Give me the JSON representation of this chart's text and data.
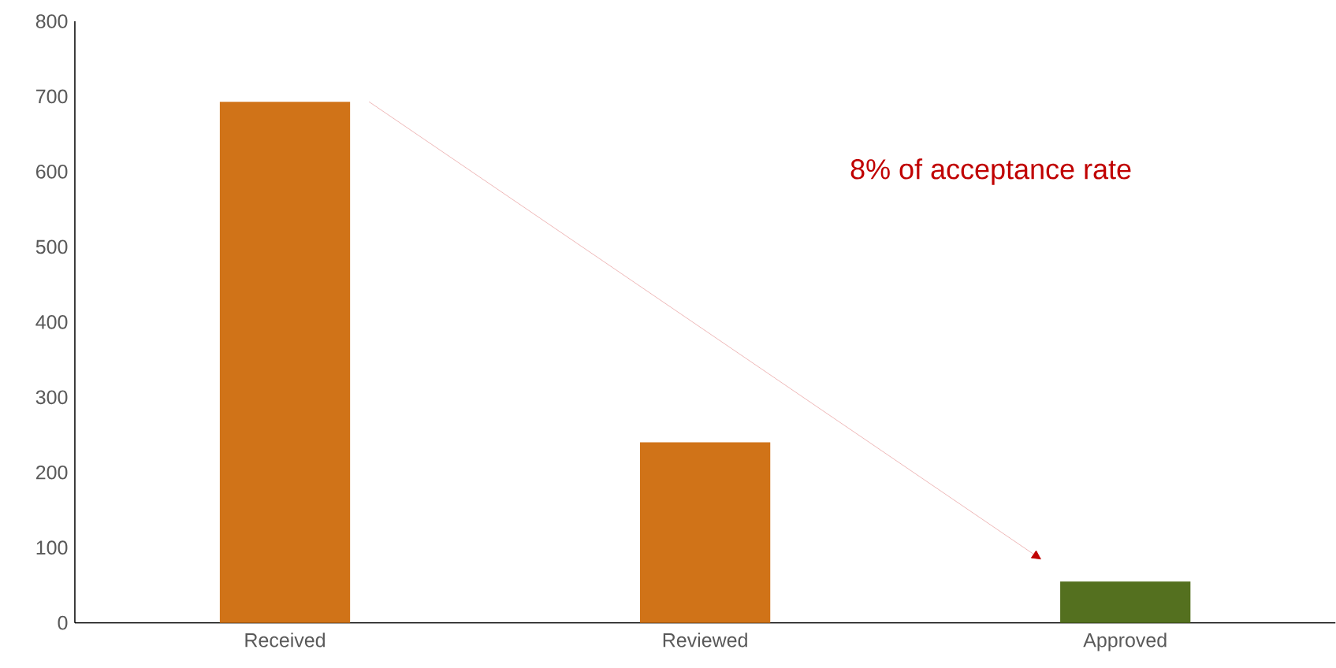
{
  "chart_data": {
    "type": "bar",
    "categories": [
      "Received",
      "Reviewed",
      "Approved"
    ],
    "values": [
      693,
      240,
      55
    ],
    "colors": [
      "#d07318",
      "#d07318",
      "#54701f"
    ],
    "ylim": [
      0,
      800
    ],
    "yticks": [
      0,
      100,
      200,
      300,
      400,
      500,
      600,
      700,
      800
    ],
    "grid": false,
    "annotations": [
      "8% of acceptance rate"
    ]
  }
}
